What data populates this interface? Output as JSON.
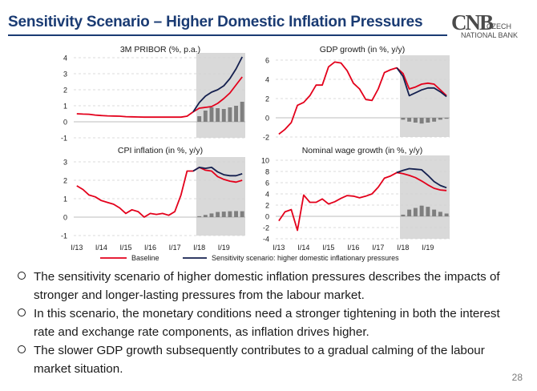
{
  "title": "Sensitivity Scenario – Higher Domestic Inflation Pressures",
  "logo": {
    "mark": "CNB",
    "line1": "CZECH",
    "line2": "NATIONAL BANK"
  },
  "page_number": "28",
  "colors": {
    "baseline": "#e3001b",
    "scenario": "#14204f",
    "bars": "#7f7f7f",
    "shade": "#d9d9d9",
    "title": "#1a3b73"
  },
  "legend": {
    "baseline": "Baseline",
    "scenario": "Sensitivity scenario: higher domestic inflationary pressures"
  },
  "x_tick_labels": [
    "I/13",
    "I/14",
    "I/15",
    "I/16",
    "I/17",
    "I/18",
    "I/19"
  ],
  "bullets": [
    "The sensitivity scenario of higher domestic inflation pressures describes the impacts of stronger and longer-lasting pressures from the labour market.",
    "In this scenario, the monetary conditions need a stronger tightening in both the interest rate and exchange rate components, as inflation drives higher.",
    "The slower GDP growth subsequently contributes to a gradual calming of the labour market situation."
  ],
  "chart_data": [
    {
      "type": "line",
      "title": "3M PRIBOR (%, p.a.)",
      "quarters": 28,
      "x_start": "I/13",
      "forecast_from_quarter": 21,
      "ylim": [
        -1,
        4
      ],
      "yticks": [
        -1,
        0,
        1,
        2,
        3,
        4
      ],
      "series": [
        {
          "name": "Baseline",
          "values": [
            0.5,
            0.48,
            0.47,
            0.42,
            0.39,
            0.37,
            0.36,
            0.35,
            0.32,
            0.31,
            0.3,
            0.29,
            0.29,
            0.29,
            0.29,
            0.29,
            0.29,
            0.29,
            0.35,
            0.62,
            0.85,
            0.9,
            0.95,
            1.15,
            1.45,
            1.8,
            2.3,
            2.8
          ]
        },
        {
          "name": "Sensitivity scenario: higher domestic inflationary pressures",
          "values": [
            null,
            null,
            null,
            null,
            null,
            null,
            null,
            null,
            null,
            null,
            null,
            null,
            null,
            null,
            null,
            null,
            null,
            null,
            null,
            0.62,
            1.2,
            1.6,
            1.85,
            2.0,
            2.25,
            2.7,
            3.3,
            4.05
          ]
        }
      ],
      "difference_bars": [
        0,
        0,
        0,
        0,
        0,
        0,
        0,
        0,
        0,
        0,
        0,
        0,
        0,
        0,
        0,
        0,
        0,
        0,
        0,
        0,
        0.35,
        0.7,
        0.9,
        0.85,
        0.8,
        0.9,
        1.0,
        1.25
      ]
    },
    {
      "type": "line",
      "title": "GDP growth (in %, y/y)",
      "quarters": 28,
      "x_start": "I/13",
      "forecast_from_quarter": 21,
      "ylim": [
        -2,
        6
      ],
      "yticks": [
        -2,
        0,
        2,
        4,
        6
      ],
      "series": [
        {
          "name": "Baseline",
          "values": [
            -1.7,
            -1.2,
            -0.5,
            1.3,
            1.6,
            2.3,
            3.4,
            3.4,
            5.3,
            5.8,
            5.7,
            4.9,
            3.6,
            3.0,
            1.9,
            1.8,
            3.0,
            4.7,
            5.0,
            5.2,
            4.6,
            3.0,
            3.2,
            3.5,
            3.6,
            3.5,
            2.9,
            2.3
          ]
        },
        {
          "name": "Sensitivity scenario: higher domestic inflationary pressures",
          "values": [
            null,
            null,
            null,
            null,
            null,
            null,
            null,
            null,
            null,
            null,
            null,
            null,
            null,
            null,
            null,
            null,
            null,
            null,
            null,
            5.2,
            4.3,
            2.3,
            2.6,
            2.9,
            3.1,
            3.1,
            2.7,
            2.2
          ]
        }
      ],
      "difference_bars": [
        0,
        0,
        0,
        0,
        0,
        0,
        0,
        0,
        0,
        0,
        0,
        0,
        0,
        0,
        0,
        0,
        0,
        0,
        0,
        0,
        -0.2,
        -0.4,
        -0.5,
        -0.6,
        -0.5,
        -0.4,
        -0.2,
        -0.1
      ]
    },
    {
      "type": "line",
      "title": "CPI inflation (in %, y/y)",
      "quarters": 28,
      "x_start": "I/13",
      "forecast_from_quarter": 21,
      "ylim": [
        -1,
        3
      ],
      "yticks": [
        -1,
        0,
        1,
        2,
        3
      ],
      "series": [
        {
          "name": "Baseline",
          "values": [
            1.7,
            1.5,
            1.2,
            1.1,
            0.9,
            0.8,
            0.7,
            0.5,
            0.2,
            0.4,
            0.3,
            0.0,
            0.2,
            0.15,
            0.2,
            0.1,
            0.3,
            1.2,
            2.5,
            2.5,
            2.7,
            2.55,
            2.5,
            2.2,
            2.05,
            1.95,
            1.9,
            2.0
          ]
        },
        {
          "name": "Sensitivity scenario: higher domestic inflationary pressures",
          "values": [
            null,
            null,
            null,
            null,
            null,
            null,
            null,
            null,
            null,
            null,
            null,
            null,
            null,
            null,
            null,
            null,
            null,
            null,
            null,
            2.5,
            2.7,
            2.65,
            2.7,
            2.45,
            2.3,
            2.25,
            2.25,
            2.35
          ]
        }
      ],
      "difference_bars": [
        0,
        0,
        0,
        0,
        0,
        0,
        0,
        0,
        0,
        0,
        0,
        0,
        0,
        0,
        0,
        0,
        0,
        0,
        0,
        0,
        0.05,
        0.12,
        0.2,
        0.28,
        0.3,
        0.32,
        0.33,
        0.32
      ]
    },
    {
      "type": "line",
      "title": "Nominal wage growth (in %, y/y)",
      "quarters": 28,
      "x_start": "I/13",
      "forecast_from_quarter": 21,
      "ylim": [
        -4,
        10
      ],
      "yticks": [
        -4,
        -2,
        0,
        2,
        4,
        6,
        8,
        10
      ],
      "series": [
        {
          "name": "Baseline",
          "values": [
            -0.8,
            0.8,
            1.2,
            -2.5,
            3.8,
            2.5,
            2.5,
            3.1,
            2.2,
            2.6,
            3.2,
            3.7,
            3.6,
            3.3,
            3.6,
            4.0,
            5.2,
            6.8,
            7.2,
            7.8,
            7.6,
            7.3,
            6.9,
            6.3,
            5.6,
            5.0,
            4.7,
            4.6
          ]
        },
        {
          "name": "Sensitivity scenario: higher domestic inflationary pressures",
          "values": [
            null,
            null,
            null,
            null,
            null,
            null,
            null,
            null,
            null,
            null,
            null,
            null,
            null,
            null,
            null,
            null,
            null,
            null,
            null,
            7.8,
            8.2,
            8.5,
            8.4,
            8.3,
            7.3,
            6.2,
            5.5,
            5.1
          ]
        }
      ],
      "difference_bars": [
        0,
        0,
        0,
        0,
        0,
        0,
        0,
        0,
        0,
        0,
        0,
        0,
        0,
        0,
        0,
        0,
        0,
        0,
        0,
        0,
        0.3,
        1.2,
        1.5,
        1.9,
        1.7,
        1.2,
        0.8,
        0.5
      ]
    }
  ]
}
